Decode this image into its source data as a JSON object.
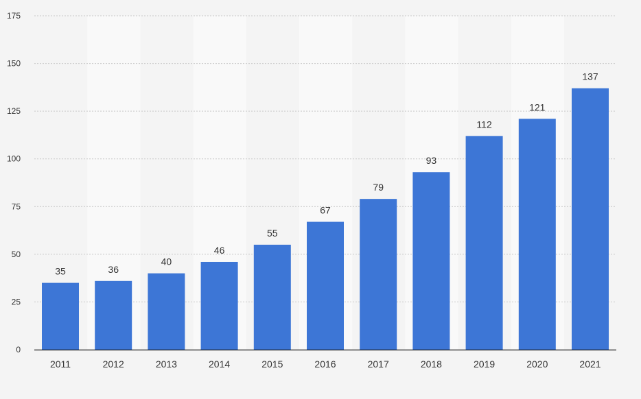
{
  "colors": {
    "bar": "#3d76d6",
    "band_light": "#f9f9f9",
    "band_dark": "#f4f4f4"
  },
  "chart_data": {
    "type": "bar",
    "categories": [
      "2011",
      "2012",
      "2013",
      "2014",
      "2015",
      "2016",
      "2017",
      "2018",
      "2019",
      "2020",
      "2021"
    ],
    "values": [
      35,
      36,
      40,
      46,
      55,
      67,
      79,
      93,
      112,
      121,
      137
    ],
    "data_labels": [
      "35",
      "36",
      "40",
      "46",
      "55",
      "67",
      "79",
      "93",
      "112",
      "121",
      "137"
    ],
    "y_ticks": [
      "0",
      "25",
      "50",
      "75",
      "100",
      "125",
      "150",
      "175"
    ],
    "ylim": [
      0,
      175
    ],
    "grid": true,
    "legend": "none"
  }
}
